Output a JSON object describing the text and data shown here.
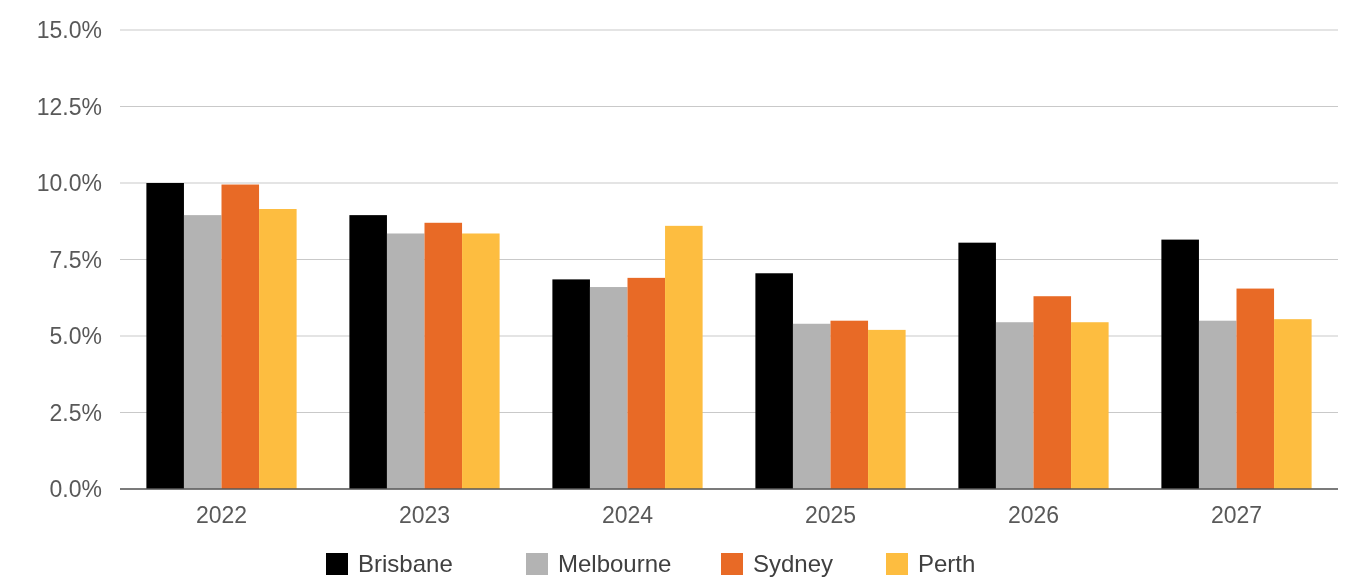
{
  "chart_data": {
    "type": "bar",
    "categories": [
      "2022",
      "2023",
      "2024",
      "2025",
      "2026",
      "2027"
    ],
    "series": [
      {
        "name": "Brisbane",
        "color": "#000000",
        "values": [
          10.0,
          8.95,
          6.85,
          7.05,
          8.05,
          8.15
        ]
      },
      {
        "name": "Melbourne",
        "color": "#b3b3b3",
        "values": [
          8.95,
          8.35,
          6.6,
          5.4,
          5.45,
          5.5
        ]
      },
      {
        "name": "Sydney",
        "color": "#e86a26",
        "values": [
          9.95,
          8.7,
          6.9,
          5.5,
          6.3,
          6.55
        ]
      },
      {
        "name": "Perth",
        "color": "#fdbd40",
        "values": [
          9.15,
          8.35,
          8.6,
          5.2,
          5.45,
          5.55
        ]
      }
    ],
    "ylim": [
      0,
      15
    ],
    "yticks": [
      {
        "value": 0,
        "label": "0.0%"
      },
      {
        "value": 2.5,
        "label": "2.5%"
      },
      {
        "value": 5,
        "label": "5.0%"
      },
      {
        "value": 7.5,
        "label": "7.5%"
      },
      {
        "value": 10,
        "label": "10.0%"
      },
      {
        "value": 12.5,
        "label": "12.5%"
      },
      {
        "value": 15,
        "label": "15.0%"
      }
    ],
    "grid": "y",
    "legend": "bottom"
  }
}
